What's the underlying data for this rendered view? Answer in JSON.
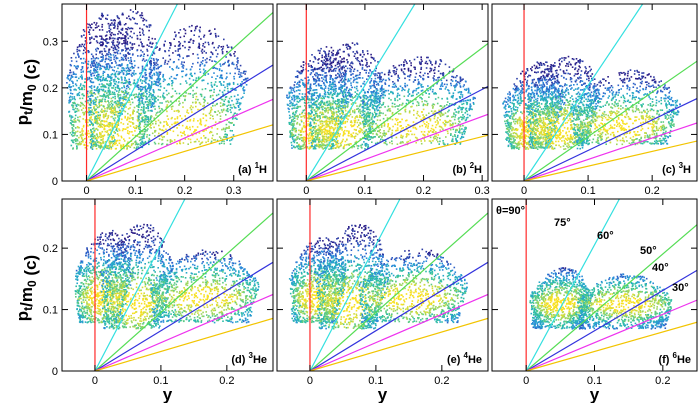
{
  "figure": {
    "ylabel": "p_t/m_0 (c)",
    "xlabel": "y"
  },
  "chart_data": [
    {
      "type": "scatter",
      "panel": "(a)",
      "nucleus": "1H",
      "label_prefix": "(a)",
      "iso_mass": "1",
      "iso_elem": "H",
      "xlim": [
        -0.05,
        0.38
      ],
      "ylim": [
        0,
        0.38
      ],
      "xticks": [
        0,
        0.1,
        0.2,
        0.3
      ],
      "xticklabels": [
        "0",
        "0.1",
        "0.2",
        "0.3"
      ],
      "yticks": [
        0,
        0.1,
        0.2,
        0.3
      ],
      "yticklabels": [
        "0",
        "0.1",
        "0.2",
        "0.3"
      ],
      "lab_angle_lines_deg": [
        90,
        75,
        60,
        50,
        40,
        30
      ],
      "clusters": [
        {
          "y_center": 0.01,
          "y_halfwidth": 0.04,
          "pt_min": 0.07,
          "pt_max": 0.37
        },
        {
          "y_center": 0.06,
          "y_halfwidth": 0.05,
          "pt_min": 0.07,
          "pt_max": 0.37
        },
        {
          "y_center": 0.2,
          "y_halfwidth": 0.09,
          "pt_min": 0.08,
          "pt_max": 0.34
        }
      ]
    },
    {
      "type": "scatter",
      "panel": "(b)",
      "nucleus": "2H",
      "label_prefix": "(b)",
      "iso_mass": "2",
      "iso_elem": "H",
      "xlim": [
        -0.05,
        0.31
      ],
      "ylim": [
        0,
        0.38
      ],
      "xticks": [
        0,
        0.1,
        0.2,
        0.3
      ],
      "xticklabels": [
        "0",
        "0.1",
        "0.2",
        "0.3"
      ],
      "yticks": [
        0,
        0.1,
        0.2,
        0.3
      ],
      "yticklabels": [],
      "lab_angle_lines_deg": [
        90,
        75,
        60,
        50,
        40,
        30
      ],
      "clusters": [
        {
          "y_center": 0.01,
          "y_halfwidth": 0.035,
          "pt_min": 0.07,
          "pt_max": 0.29
        },
        {
          "y_center": 0.055,
          "y_halfwidth": 0.045,
          "pt_min": 0.07,
          "pt_max": 0.3
        },
        {
          "y_center": 0.18,
          "y_halfwidth": 0.08,
          "pt_min": 0.08,
          "pt_max": 0.27
        }
      ]
    },
    {
      "type": "scatter",
      "panel": "(c)",
      "nucleus": "3H",
      "label_prefix": "(c)",
      "iso_mass": "3",
      "iso_elem": "H",
      "xlim": [
        -0.05,
        0.27
      ],
      "ylim": [
        0,
        0.38
      ],
      "xticks": [
        0,
        0.1,
        0.2
      ],
      "xticklabels": [
        "0",
        "0.1",
        "0.2"
      ],
      "yticks": [
        0,
        0.1,
        0.2,
        0.3
      ],
      "yticklabels": [],
      "lab_angle_lines_deg": [
        90,
        75,
        60,
        50,
        40,
        30
      ],
      "clusters": [
        {
          "y_center": 0.005,
          "y_halfwidth": 0.03,
          "pt_min": 0.07,
          "pt_max": 0.26
        },
        {
          "y_center": 0.05,
          "y_halfwidth": 0.04,
          "pt_min": 0.07,
          "pt_max": 0.27
        },
        {
          "y_center": 0.15,
          "y_halfwidth": 0.07,
          "pt_min": 0.08,
          "pt_max": 0.24
        }
      ]
    },
    {
      "type": "scatter",
      "panel": "(d)",
      "nucleus": "3He",
      "label_prefix": "(d)",
      "iso_mass": "3",
      "iso_elem": "He",
      "xlim": [
        -0.05,
        0.27
      ],
      "ylim": [
        0,
        0.28
      ],
      "xticks": [
        0,
        0.1,
        0.2
      ],
      "xticklabels": [
        "0",
        "0.1",
        "0.2"
      ],
      "yticks": [
        0,
        0.1,
        0.2
      ],
      "yticklabels": [
        "0",
        "0.1",
        "0.2"
      ],
      "lab_angle_lines_deg": [
        90,
        75,
        60,
        50,
        40,
        30
      ],
      "clusters": [
        {
          "y_center": 0.005,
          "y_halfwidth": 0.03,
          "pt_min": 0.08,
          "pt_max": 0.23
        },
        {
          "y_center": 0.055,
          "y_halfwidth": 0.04,
          "pt_min": 0.07,
          "pt_max": 0.24
        },
        {
          "y_center": 0.16,
          "y_halfwidth": 0.07,
          "pt_min": 0.08,
          "pt_max": 0.2
        }
      ]
    },
    {
      "type": "scatter",
      "panel": "(e)",
      "nucleus": "4He",
      "label_prefix": "(e)",
      "iso_mass": "4",
      "iso_elem": "He",
      "xlim": [
        -0.05,
        0.27
      ],
      "ylim": [
        0,
        0.28
      ],
      "xticks": [
        0,
        0.1,
        0.2
      ],
      "xticklabels": [
        "0",
        "0.1",
        "0.2"
      ],
      "yticks": [
        0,
        0.1,
        0.2
      ],
      "yticklabels": [],
      "lab_angle_lines_deg": [
        90,
        75,
        60,
        50,
        40,
        30
      ],
      "clusters": [
        {
          "y_center": 0.005,
          "y_halfwidth": 0.03,
          "pt_min": 0.08,
          "pt_max": 0.22
        },
        {
          "y_center": 0.055,
          "y_halfwidth": 0.04,
          "pt_min": 0.07,
          "pt_max": 0.24
        },
        {
          "y_center": 0.15,
          "y_halfwidth": 0.07,
          "pt_min": 0.08,
          "pt_max": 0.2
        }
      ]
    },
    {
      "type": "scatter",
      "panel": "(f)",
      "nucleus": "6He",
      "label_prefix": "(f)",
      "iso_mass": "6",
      "iso_elem": "He",
      "xlim": [
        -0.05,
        0.25
      ],
      "ylim": [
        0,
        0.28
      ],
      "xticks": [
        0,
        0.1,
        0.2
      ],
      "xticklabels": [
        "0",
        "0.1",
        "0.2"
      ],
      "yticks": [
        0,
        0.1,
        0.2
      ],
      "yticklabels": [],
      "lab_angle_lines_deg": [
        90,
        75,
        60,
        50,
        40,
        30
      ],
      "angle_labels": [
        "θ=90°",
        "75°",
        "60°",
        "50°",
        "40°",
        "30°"
      ],
      "clusters": [
        {
          "y_center": 0.045,
          "y_halfwidth": 0.035,
          "pt_min": 0.07,
          "pt_max": 0.17
        },
        {
          "y_center": 0.14,
          "y_halfwidth": 0.06,
          "pt_min": 0.07,
          "pt_max": 0.16
        }
      ]
    }
  ],
  "colors": {
    "theta_90": "#ff2a2a",
    "theta_75": "#33e0e0",
    "theta_60": "#55dd55",
    "theta_50": "#3333dd",
    "theta_40": "#ee33ee",
    "theta_30": "#f2c400"
  }
}
